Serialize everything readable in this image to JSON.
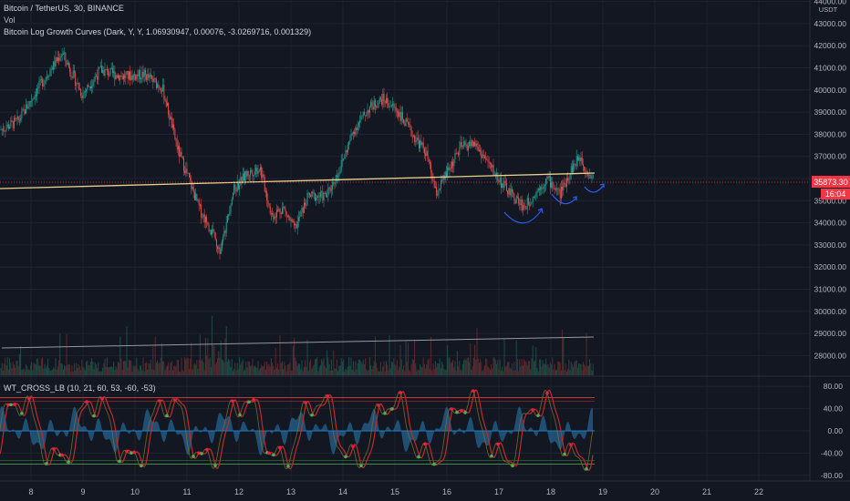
{
  "legend": {
    "symbol": "Bitcoin / TetherUS, 30, BINANCE",
    "volume": "Vol",
    "indicator": "Bitcoin Log Growth Curves (Dark, Y, Y, 1.06930947, 0.00076, -3.0269716, 0.001329)",
    "oscillator": "WT_CROSS_LB (10, 21, 60, 53, -60, -53)"
  },
  "price_axis": {
    "currency": "USDT",
    "ticks": [
      "44000.00",
      "43000.00",
      "42000.00",
      "41000.00",
      "40000.00",
      "39000.00",
      "38000.00",
      "37000.00",
      "36000.00",
      "35000.00",
      "34000.00",
      "33000.00",
      "32000.00",
      "31000.00",
      "30000.00",
      "29000.00",
      "28000.00"
    ],
    "last_price": "35873.30",
    "countdown": "16:04"
  },
  "osc_axis": {
    "ticks": [
      "80.00",
      "40.00",
      "0.00",
      "-40.00",
      "-80.00"
    ]
  },
  "time_axis": {
    "labels": [
      "8",
      "9",
      "10",
      "11",
      "12",
      "13",
      "14",
      "15",
      "16",
      "17",
      "18",
      "19",
      "20",
      "21",
      "22"
    ]
  },
  "colors": {
    "background": "#131722",
    "grid": "#1f2331",
    "up": "#26a69a",
    "down": "#ef5350",
    "growth_curve": "#e8d08c",
    "volume_curve": "#9598a1",
    "annotation": "#2962ff",
    "price_label": "#f23645",
    "wt1": "#2a7fb8",
    "wt2": "#c62828",
    "cross_green": "#4caf50",
    "cross_red": "#ff1744"
  }
}
